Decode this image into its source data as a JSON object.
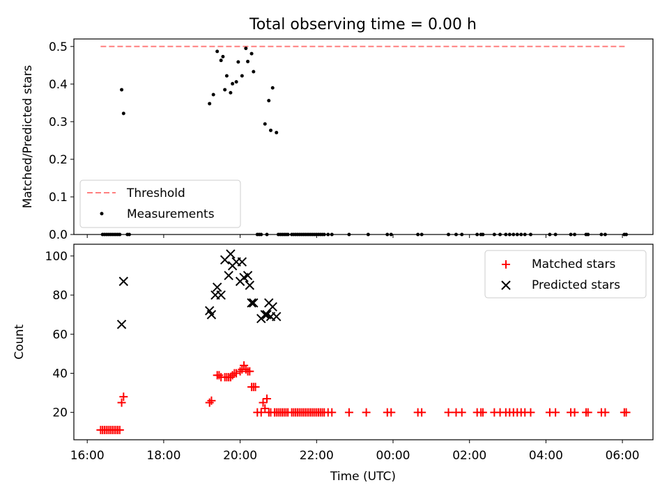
{
  "title": "Total observing time = 0.00 h",
  "colors": {
    "threshold": "#ff7f7f",
    "measurements": "#000000",
    "matched": "#ff0000",
    "predicted": "#000000"
  },
  "chart_data": [
    {
      "type": "scatter",
      "panel": "top",
      "xlabel": "",
      "ylabel": "Matched/Predicted stars",
      "ylim": [
        0,
        0.52
      ],
      "yticks": [
        0.0,
        0.1,
        0.2,
        0.3,
        0.4,
        0.5
      ],
      "ytick_labels": [
        "0.0",
        "0.1",
        "0.2",
        "0.3",
        "0.4",
        "0.5"
      ],
      "xlim_hours_from_midnight": [
        -8.35,
        6.8
      ],
      "xticks": [
        -8,
        -6,
        -4,
        -2,
        0,
        2,
        4,
        6
      ],
      "legend": {
        "placement": "lower-left",
        "entries": [
          "Threshold",
          "Measurements"
        ]
      },
      "threshold": {
        "name": "Threshold",
        "value": 0.5,
        "x_range": [
          -7.65,
          6.1
        ],
        "style": "dashed"
      },
      "series": [
        {
          "name": "Measurements",
          "marker": "dot",
          "x": [
            -7.6,
            -7.55,
            -7.5,
            -7.45,
            -7.4,
            -7.35,
            -7.3,
            -7.25,
            -7.2,
            -7.15,
            -7.1,
            -7.05,
            -6.95,
            -6.9,
            -4.8,
            -4.7,
            -4.6,
            -4.5,
            -4.45,
            -4.4,
            -4.35,
            -4.25,
            -4.2,
            -4.1,
            -4.05,
            -3.95,
            -3.85,
            -3.8,
            -3.7,
            -3.65,
            -3.55,
            -3.5,
            -3.45,
            -3.35,
            -3.3,
            -3.25,
            -3.2,
            -3.15,
            -3.05,
            -3.0,
            -2.95,
            -2.9,
            -2.85,
            -2.8,
            -2.75,
            -2.65,
            -2.6,
            -2.55,
            -2.5,
            -2.45,
            -2.4,
            -2.35,
            -2.3,
            -2.25,
            -2.2,
            -2.15,
            -2.1,
            -2.05,
            -2.0,
            -1.95,
            -1.9,
            -1.85,
            -1.8,
            -1.7,
            -1.6,
            -1.15,
            -0.65,
            -0.15,
            -0.05,
            0.65,
            0.75,
            1.45,
            1.65,
            1.8,
            2.2,
            2.3,
            2.35,
            2.65,
            2.8,
            2.95,
            3.05,
            3.15,
            3.25,
            3.35,
            3.45,
            3.6,
            4.1,
            4.25,
            4.65,
            4.75,
            5.05,
            5.1,
            5.45,
            5.55,
            6.05,
            6.1
          ],
          "y": [
            0.0,
            0.0,
            0.0,
            0.0,
            0.0,
            0.0,
            0.0,
            0.0,
            0.0,
            0.0,
            0.385,
            0.322,
            0.0,
            0.0,
            0.348,
            0.372,
            0.487,
            0.463,
            0.473,
            0.385,
            0.422,
            0.377,
            0.401,
            0.406,
            0.459,
            0.422,
            0.495,
            0.46,
            0.481,
            0.433,
            0.0,
            0.0,
            0.0,
            0.294,
            0.0,
            0.356,
            0.277,
            0.39,
            0.271,
            0.0,
            0.0,
            0.0,
            0.0,
            0.0,
            0.0,
            0.0,
            0.0,
            0.0,
            0.0,
            0.0,
            0.0,
            0.0,
            0.0,
            0.0,
            0.0,
            0.0,
            0.0,
            0.0,
            0.0,
            0.0,
            0.0,
            0.0,
            0.0,
            0.0,
            0.0,
            0.0,
            0.0,
            0.0,
            0.0,
            0.0,
            0.0,
            0.0,
            0.0,
            0.0,
            0.0,
            0.0,
            0.0,
            0.0,
            0.0,
            0.0,
            0.0,
            0.0,
            0.0,
            0.0,
            0.0,
            0.0,
            0.0,
            0.0,
            0.0,
            0.0,
            0.0,
            0.0,
            0.0,
            0.0,
            0.0,
            0.0
          ]
        }
      ]
    },
    {
      "type": "scatter",
      "panel": "bottom",
      "xlabel": "Time (UTC)",
      "ylabel": "Count",
      "ylim": [
        6,
        106
      ],
      "yticks": [
        20,
        40,
        60,
        80,
        100
      ],
      "ytick_labels": [
        "20",
        "40",
        "60",
        "80",
        "100"
      ],
      "xlim_hours_from_midnight": [
        -8.35,
        6.8
      ],
      "xticks": [
        -8,
        -6,
        -4,
        -2,
        0,
        2,
        4,
        6
      ],
      "xtick_labels": [
        "16:00",
        "18:00",
        "20:00",
        "22:00",
        "00:00",
        "02:00",
        "04:00",
        "06:00"
      ],
      "legend": {
        "placement": "upper-right",
        "entries": [
          "Matched stars",
          "Predicted stars"
        ]
      },
      "series": [
        {
          "name": "Matched stars",
          "marker": "plus",
          "x": [
            -7.65,
            -7.6,
            -7.55,
            -7.5,
            -7.45,
            -7.4,
            -7.35,
            -7.3,
            -7.25,
            -7.2,
            -7.15,
            -7.1,
            -7.05,
            -4.8,
            -4.75,
            -4.6,
            -4.55,
            -4.5,
            -4.4,
            -4.35,
            -4.3,
            -4.25,
            -4.2,
            -4.15,
            -4.1,
            -4.0,
            -3.95,
            -3.9,
            -3.85,
            -3.8,
            -3.75,
            -3.7,
            -3.65,
            -3.6,
            -3.55,
            -3.45,
            -3.4,
            -3.35,
            -3.3,
            -3.25,
            -3.2,
            -3.1,
            -3.05,
            -3.0,
            -2.95,
            -2.9,
            -2.85,
            -2.8,
            -2.75,
            -2.65,
            -2.6,
            -2.55,
            -2.5,
            -2.45,
            -2.4,
            -2.35,
            -2.3,
            -2.25,
            -2.2,
            -2.15,
            -2.1,
            -2.05,
            -2.0,
            -1.95,
            -1.9,
            -1.85,
            -1.8,
            -1.7,
            -1.6,
            -1.15,
            -0.7,
            -0.15,
            -0.05,
            0.65,
            0.75,
            1.45,
            1.65,
            1.8,
            2.2,
            2.3,
            2.35,
            2.65,
            2.8,
            2.95,
            3.05,
            3.15,
            3.25,
            3.35,
            3.45,
            3.6,
            4.1,
            4.25,
            4.65,
            4.75,
            5.05,
            5.1,
            5.45,
            5.55,
            6.05,
            6.1
          ],
          "y": [
            11,
            11,
            11,
            11,
            11,
            11,
            11,
            11,
            11,
            11,
            11,
            25,
            28,
            25,
            26,
            39,
            39,
            38,
            38,
            38,
            38,
            38,
            39,
            40,
            40,
            41,
            42,
            44,
            42,
            41,
            41,
            33,
            33,
            33,
            20,
            20,
            25,
            22,
            27,
            20,
            20,
            20,
            20,
            20,
            20,
            20,
            20,
            20,
            20,
            20,
            20,
            20,
            20,
            20,
            20,
            20,
            20,
            20,
            20,
            20,
            20,
            20,
            20,
            20,
            20,
            20,
            20,
            20,
            20,
            20,
            20,
            20,
            20,
            20,
            20,
            20,
            20,
            20,
            20,
            20,
            20,
            20,
            20,
            20,
            20,
            20,
            20,
            20,
            20,
            20,
            20,
            20,
            20,
            20,
            20,
            20,
            20,
            20,
            20,
            20
          ]
        },
        {
          "name": "Predicted stars",
          "marker": "x",
          "x": [
            -7.1,
            -7.05,
            -4.8,
            -4.75,
            -4.65,
            -4.6,
            -4.5,
            -4.4,
            -4.3,
            -4.25,
            -4.2,
            -4.1,
            -4.0,
            -3.95,
            -3.9,
            -3.8,
            -3.75,
            -3.7,
            -3.65,
            -3.45,
            -3.35,
            -3.3,
            -3.25,
            -3.2,
            -3.15,
            -3.05
          ],
          "y": [
            65,
            87,
            72,
            70,
            80,
            84,
            80,
            98,
            90,
            101,
            95,
            97,
            87,
            97,
            89,
            90,
            85,
            76,
            76,
            68,
            70,
            70,
            76,
            69,
            74,
            69
          ]
        }
      ]
    }
  ]
}
